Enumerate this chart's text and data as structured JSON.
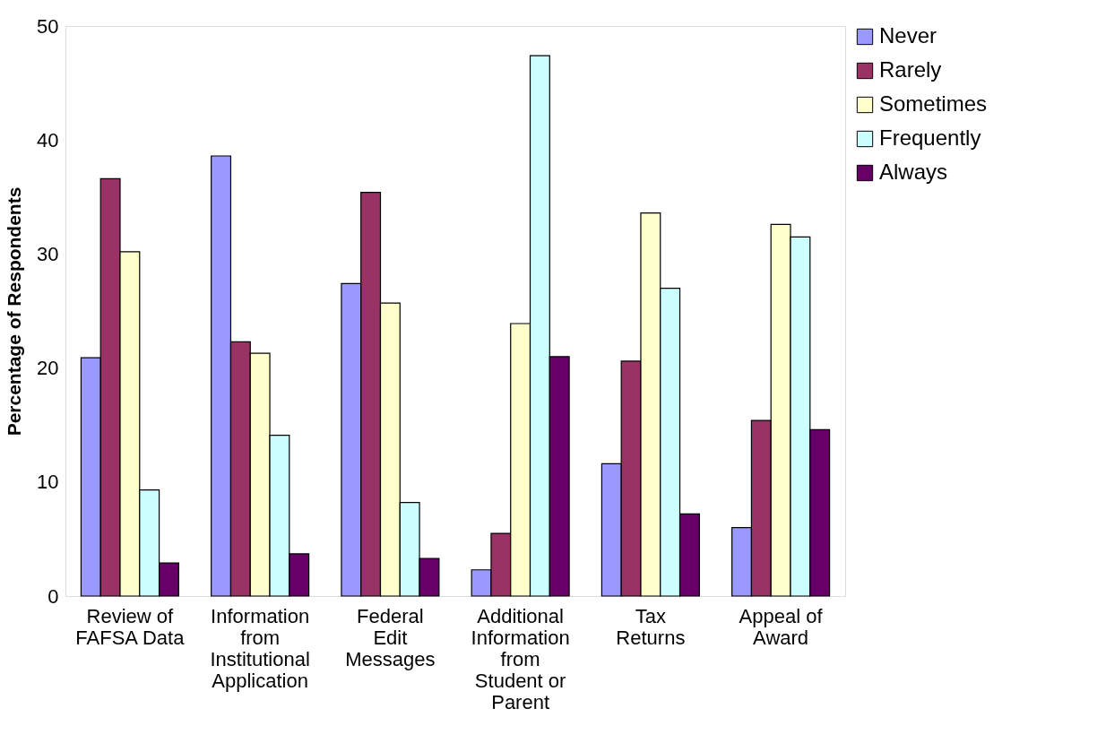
{
  "chart_data": {
    "type": "bar",
    "ylabel": "Percentage of Respondents",
    "categories": [
      "Review of FAFSA Data",
      "Information from Institutional Application",
      "Federal Edit Messages",
      "Additional Information from Student or Parent",
      "Tax Returns",
      "Appeal of Award"
    ],
    "series": [
      {
        "name": "Never",
        "color": "#9999ff",
        "values": [
          20.9,
          38.6,
          27.4,
          2.3,
          11.6,
          6.0
        ]
      },
      {
        "name": "Rarely",
        "color": "#993366",
        "values": [
          36.6,
          22.3,
          35.4,
          5.5,
          20.6,
          15.4
        ]
      },
      {
        "name": "Sometimes",
        "color": "#ffffcc",
        "values": [
          30.2,
          21.3,
          25.7,
          23.9,
          33.6,
          32.6
        ]
      },
      {
        "name": "Frequently",
        "color": "#ccffff",
        "values": [
          9.3,
          14.1,
          8.2,
          47.4,
          27.0,
          31.5
        ]
      },
      {
        "name": "Always",
        "color": "#660066",
        "values": [
          2.9,
          3.7,
          3.3,
          21.0,
          7.2,
          14.6
        ]
      }
    ],
    "ylim": [
      0,
      50
    ],
    "yticks": [
      0,
      10,
      20,
      30,
      40,
      50
    ],
    "grid": false,
    "legend": "right"
  }
}
